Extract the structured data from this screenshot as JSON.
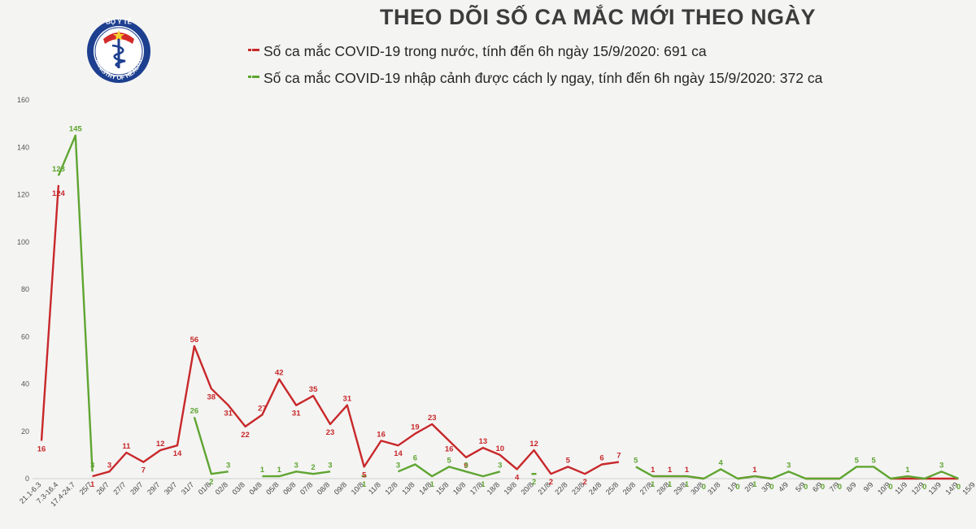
{
  "header": {
    "title": "THEO DÕI SỐ CA MẮC MỚI THEO NGÀY",
    "logo_top_text": "BỘ Y TẾ",
    "logo_bottom_text": "MINISTRY OF HEALTH"
  },
  "chart_data": {
    "type": "line",
    "title": "THEO DÕI SỐ CA MẮC MỚI THEO NGÀY",
    "xlabel": "",
    "ylabel": "",
    "ylim": [
      0,
      160
    ],
    "yticks": [
      0,
      20,
      40,
      60,
      80,
      100,
      120,
      140,
      160
    ],
    "grid": false,
    "legend_position": "top",
    "categories": [
      "21.1-6.3",
      "7.3-16.4",
      "17.4-24.7",
      "25/7",
      "26/7",
      "27/7",
      "28/7",
      "29/7",
      "30/7",
      "31/7",
      "01/8",
      "02/8",
      "03/8",
      "04/8",
      "05/8",
      "06/8",
      "07/8",
      "08/8",
      "09/8",
      "10/8",
      "11/8",
      "12/8",
      "13/8",
      "14/8",
      "15/8",
      "16/8",
      "17/8",
      "18/8",
      "19/8",
      "20/8",
      "21/8",
      "22/8",
      "23/8",
      "24/8",
      "25/8",
      "26/8",
      "27/8",
      "28/8",
      "29/8",
      "30/8",
      "31/8",
      "1/9",
      "2/9",
      "3/9",
      "4/9",
      "5/9",
      "6/9",
      "7/9",
      "8/9",
      "9/9",
      "10/9",
      "11/9",
      "12/9",
      "13/9",
      "14/9",
      "15/9"
    ],
    "series": [
      {
        "name": "Số ca mắc COVID-19 trong nước, tính đến 6h ngày 15/9/2020: 691 ca",
        "color": "#c8282a",
        "values": [
          16,
          124,
          null,
          1,
          3,
          11,
          7,
          12,
          14,
          56,
          38,
          31,
          22,
          27,
          42,
          31,
          35,
          23,
          31,
          5,
          16,
          14,
          19,
          23,
          16,
          9,
          13,
          10,
          4,
          12,
          2,
          5,
          2,
          6,
          7,
          null,
          1,
          1,
          1,
          0,
          null,
          0,
          1,
          0,
          null,
          0,
          0,
          0,
          null,
          null,
          0,
          0,
          0,
          0,
          0,
          null
        ]
      },
      {
        "name": "Số ca mắc COVID-19 nhập cảnh được cách ly ngay, tính đến 6h ngày 15/9/2020: 372 ca",
        "color": "#5fa531",
        "values": [
          null,
          128,
          145,
          3,
          null,
          null,
          null,
          null,
          null,
          26,
          2,
          3,
          null,
          1,
          1,
          3,
          2,
          3,
          null,
          1,
          null,
          3,
          6,
          1,
          5,
          3,
          1,
          3,
          null,
          2,
          null,
          null,
          null,
          null,
          null,
          5,
          1,
          1,
          1,
          0,
          4,
          0,
          1,
          0,
          3,
          0,
          0,
          0,
          5,
          5,
          0,
          1,
          0,
          3,
          0,
          null
        ]
      }
    ],
    "data_labels": {
      "red": [
        {
          "i": 0,
          "v": "16",
          "pos": "below"
        },
        {
          "i": 1,
          "v": "124",
          "pos": "below"
        },
        {
          "i": 3,
          "v": "1",
          "pos": "below"
        },
        {
          "i": 4,
          "v": "3",
          "pos": "above"
        },
        {
          "i": 5,
          "v": "11",
          "pos": "above"
        },
        {
          "i": 6,
          "v": "7",
          "pos": "below"
        },
        {
          "i": 7,
          "v": "12",
          "pos": "above"
        },
        {
          "i": 8,
          "v": "14",
          "pos": "below"
        },
        {
          "i": 9,
          "v": "56",
          "pos": "above"
        },
        {
          "i": 10,
          "v": "38",
          "pos": "below"
        },
        {
          "i": 11,
          "v": "31",
          "pos": "below"
        },
        {
          "i": 12,
          "v": "22",
          "pos": "below"
        },
        {
          "i": 13,
          "v": "27",
          "pos": "above"
        },
        {
          "i": 14,
          "v": "42",
          "pos": "above"
        },
        {
          "i": 15,
          "v": "31",
          "pos": "below"
        },
        {
          "i": 16,
          "v": "35",
          "pos": "above"
        },
        {
          "i": 17,
          "v": "23",
          "pos": "below"
        },
        {
          "i": 18,
          "v": "31",
          "pos": "above"
        },
        {
          "i": 19,
          "v": "5",
          "pos": "below"
        },
        {
          "i": 20,
          "v": "16",
          "pos": "above"
        },
        {
          "i": 21,
          "v": "14",
          "pos": "below"
        },
        {
          "i": 22,
          "v": "19",
          "pos": "above"
        },
        {
          "i": 23,
          "v": "23",
          "pos": "above"
        },
        {
          "i": 24,
          "v": "16",
          "pos": "below"
        },
        {
          "i": 25,
          "v": "9",
          "pos": "below"
        },
        {
          "i": 26,
          "v": "13",
          "pos": "above"
        },
        {
          "i": 27,
          "v": "10",
          "pos": "above"
        },
        {
          "i": 28,
          "v": "4",
          "pos": "below"
        },
        {
          "i": 29,
          "v": "12",
          "pos": "above"
        },
        {
          "i": 30,
          "v": "2",
          "pos": "below"
        },
        {
          "i": 31,
          "v": "5",
          "pos": "above"
        },
        {
          "i": 32,
          "v": "2",
          "pos": "below"
        },
        {
          "i": 33,
          "v": "6",
          "pos": "above"
        },
        {
          "i": 34,
          "v": "7",
          "pos": "above"
        },
        {
          "i": 36,
          "v": "1",
          "pos": "above"
        },
        {
          "i": 37,
          "v": "1",
          "pos": "above"
        },
        {
          "i": 38,
          "v": "1",
          "pos": "above"
        },
        {
          "i": 42,
          "v": "1",
          "pos": "above"
        }
      ],
      "green": [
        {
          "i": 1,
          "v": "128",
          "pos": "above"
        },
        {
          "i": 2,
          "v": "145",
          "pos": "above"
        },
        {
          "i": 3,
          "v": "3",
          "pos": "above"
        },
        {
          "i": 9,
          "v": "26",
          "pos": "above"
        },
        {
          "i": 10,
          "v": "2",
          "pos": "below"
        },
        {
          "i": 11,
          "v": "3",
          "pos": "above"
        },
        {
          "i": 13,
          "v": "1",
          "pos": "above"
        },
        {
          "i": 14,
          "v": "1",
          "pos": "above"
        },
        {
          "i": 15,
          "v": "3",
          "pos": "above"
        },
        {
          "i": 16,
          "v": "2",
          "pos": "above"
        },
        {
          "i": 17,
          "v": "3",
          "pos": "above"
        },
        {
          "i": 19,
          "v": "1",
          "pos": "below"
        },
        {
          "i": 21,
          "v": "3",
          "pos": "above"
        },
        {
          "i": 22,
          "v": "6",
          "pos": "above"
        },
        {
          "i": 23,
          "v": "1",
          "pos": "below"
        },
        {
          "i": 24,
          "v": "5",
          "pos": "above"
        },
        {
          "i": 25,
          "v": "3",
          "pos": "above"
        },
        {
          "i": 26,
          "v": "1",
          "pos": "below"
        },
        {
          "i": 27,
          "v": "3",
          "pos": "above"
        },
        {
          "i": 29,
          "v": "2",
          "pos": "below"
        },
        {
          "i": 35,
          "v": "5",
          "pos": "above"
        },
        {
          "i": 36,
          "v": "1",
          "pos": "below"
        },
        {
          "i": 37,
          "v": "1",
          "pos": "below"
        },
        {
          "i": 38,
          "v": "1",
          "pos": "below"
        },
        {
          "i": 39,
          "v": "0",
          "pos": "below"
        },
        {
          "i": 40,
          "v": "4",
          "pos": "above"
        },
        {
          "i": 41,
          "v": "0",
          "pos": "below"
        },
        {
          "i": 42,
          "v": "1",
          "pos": "below"
        },
        {
          "i": 43,
          "v": "0",
          "pos": "below"
        },
        {
          "i": 44,
          "v": "3",
          "pos": "above"
        },
        {
          "i": 45,
          "v": "0",
          "pos": "below"
        },
        {
          "i": 46,
          "v": "0",
          "pos": "below"
        },
        {
          "i": 47,
          "v": "0",
          "pos": "below"
        },
        {
          "i": 48,
          "v": "5",
          "pos": "above"
        },
        {
          "i": 49,
          "v": "5",
          "pos": "above"
        },
        {
          "i": 50,
          "v": "0",
          "pos": "below"
        },
        {
          "i": 51,
          "v": "1",
          "pos": "above"
        },
        {
          "i": 52,
          "v": "0",
          "pos": "below"
        },
        {
          "i": 53,
          "v": "3",
          "pos": "above"
        },
        {
          "i": 54,
          "v": "0",
          "pos": "below"
        }
      ]
    }
  }
}
